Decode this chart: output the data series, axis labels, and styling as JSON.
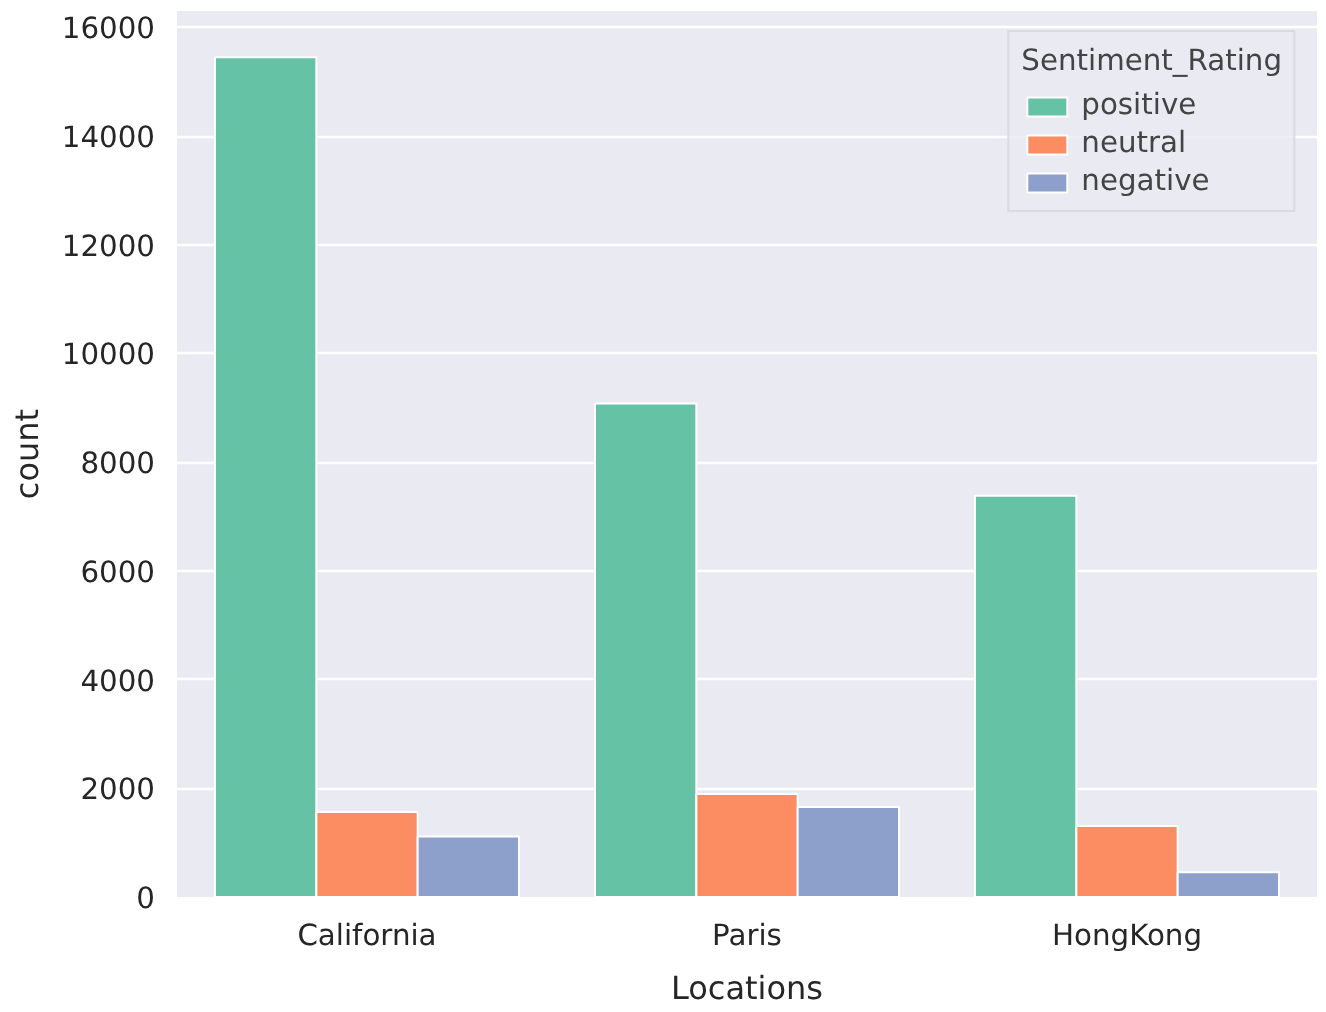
{
  "chart_data": {
    "type": "bar",
    "xlabel": "Locations",
    "ylabel": "count",
    "legend_title": "Sentiment_Rating",
    "categories": [
      "California",
      "Paris",
      "HongKong"
    ],
    "series": [
      {
        "name": "positive",
        "color": "#66c2a5",
        "values": [
          15450,
          9080,
          7380
        ]
      },
      {
        "name": "neutral",
        "color": "#fc8d62",
        "values": [
          1565,
          1895,
          1305
        ]
      },
      {
        "name": "negative",
        "color": "#8da0cb",
        "values": [
          1115,
          1655,
          455
        ]
      }
    ],
    "ylim": [
      0,
      16300
    ],
    "yticks": [
      0,
      2000,
      4000,
      6000,
      8000,
      10000,
      12000,
      14000,
      16000
    ],
    "grid": true,
    "legend": "top right"
  }
}
